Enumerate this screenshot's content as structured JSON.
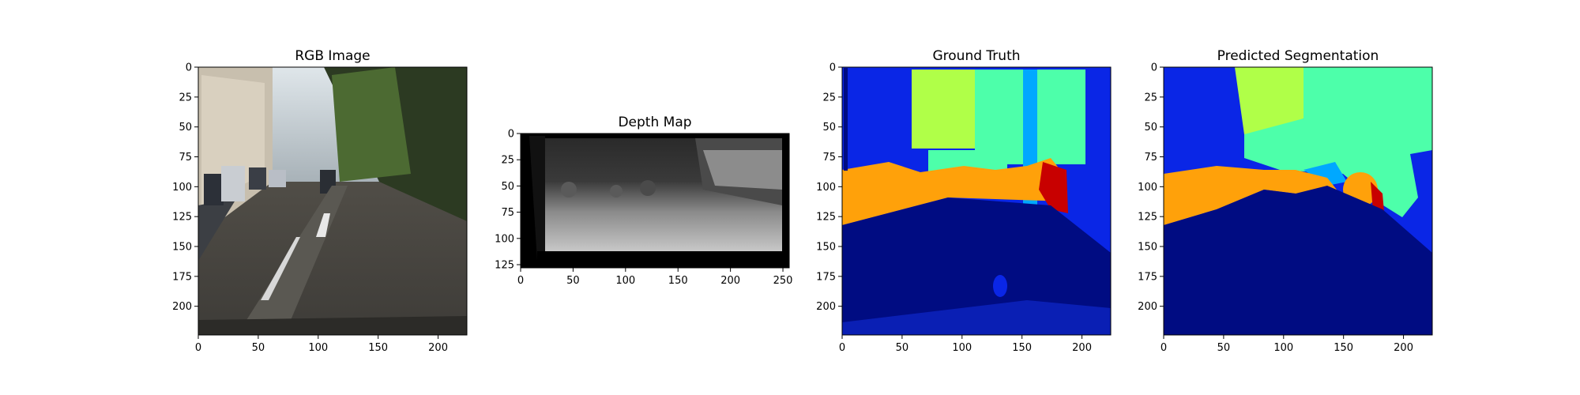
{
  "chart_data": [
    {
      "type": "image",
      "name": "rgb-image",
      "title": "RGB Image",
      "xlim": [
        0,
        224
      ],
      "ylim": [
        0,
        224
      ],
      "xticks": [
        0,
        50,
        100,
        150,
        200
      ],
      "yticks": [
        0,
        25,
        50,
        75,
        100,
        125,
        150,
        175,
        200
      ],
      "content": "street-scene photo"
    },
    {
      "type": "image",
      "name": "depth-map",
      "title": "Depth Map",
      "xlim": [
        0,
        256
      ],
      "ylim": [
        0,
        128
      ],
      "xticks": [
        0,
        50,
        100,
        150,
        200,
        250
      ],
      "yticks": [
        0,
        25,
        50,
        75,
        100,
        125
      ],
      "content": "grayscale depth"
    },
    {
      "type": "image",
      "name": "ground-truth",
      "title": "Ground Truth",
      "xlim": [
        0,
        224
      ],
      "ylim": [
        0,
        224
      ],
      "xticks": [
        0,
        50,
        100,
        150,
        200
      ],
      "yticks": [
        0,
        25,
        50,
        75,
        100,
        125,
        150,
        175,
        200
      ],
      "content": "segmentation mask"
    },
    {
      "type": "image",
      "name": "predicted-segmentation",
      "title": "Predicted Segmentation",
      "xlim": [
        0,
        224
      ],
      "ylim": [
        0,
        224
      ],
      "xticks": [
        0,
        50,
        100,
        150,
        200
      ],
      "yticks": [
        0,
        25,
        50,
        75,
        100,
        125,
        150,
        175,
        200
      ],
      "content": "segmentation mask"
    }
  ],
  "colors": {
    "road": "#000c82",
    "sidewalk": "#0a26e6",
    "building_green": "#4dffaa",
    "vegetation": "#b0ff48",
    "car": "#ffa10a",
    "person_red": "#c80000",
    "sky": "#00a8ff"
  }
}
